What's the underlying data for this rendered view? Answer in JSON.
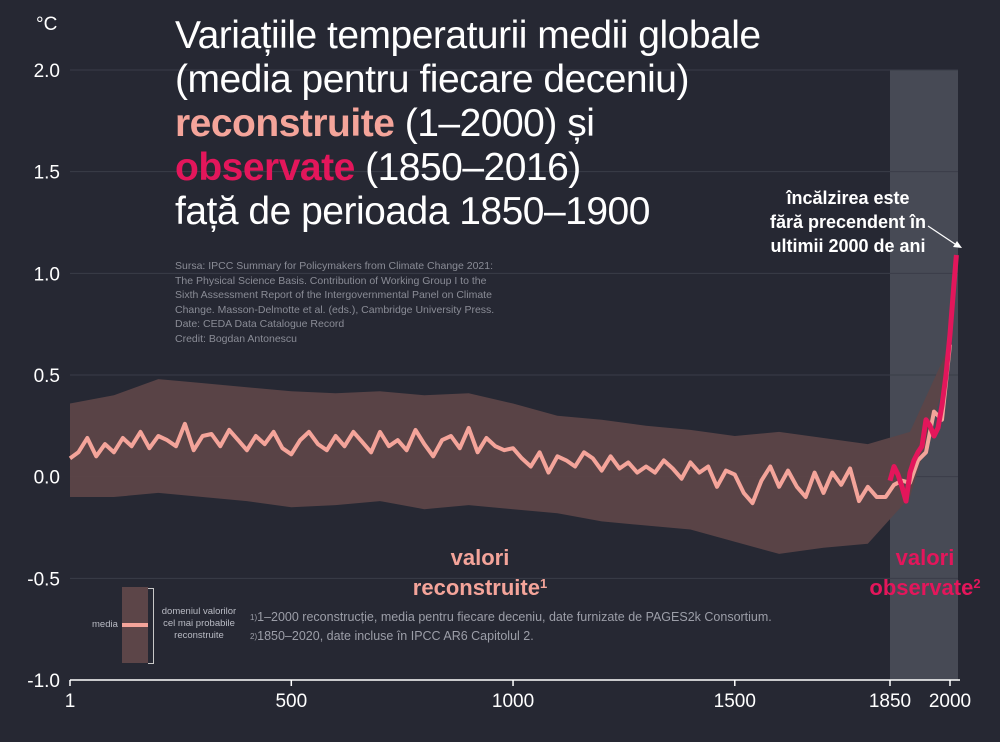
{
  "title": {
    "line1": "Variațiile temperaturii medii globale",
    "line2": "(media pentru fiecare deceniu)",
    "reconstructed_word": "reconstruite",
    "reconstructed_range": " (1–2000) și",
    "observed_word": "observate",
    "observed_range": " (1850–2016)",
    "line5": "față de perioada 1850–1900"
  },
  "source_lines": [
    "Sursa: IPCC Summary for Policymakers from Climate Change 2021:",
    "The Physical Science Basis. Contribution of Working Group I to the",
    "Sixth Assessment Report of the Intergovernmental Panel on Climate",
    "Change. Masson-Delmotte et al. (eds.), Cambridge University Press.",
    "Date: CEDA Data Catalogue Record",
    "Credit: Bogdan Antonescu"
  ],
  "annotation": {
    "line1": "încălzirea este",
    "line2": "fără precendent în",
    "line3": "ultimii 2000 de ani"
  },
  "labels": {
    "reconstructed_l1": "valori",
    "reconstructed_l2": "reconstruite",
    "reconstructed_sup": "1",
    "observed_l1": "valori",
    "observed_l2": "observate",
    "observed_sup": "2"
  },
  "footnotes": {
    "fn1_sup": "1)",
    "fn1_text": "1–2000 reconstrucție, media pentru fiecare deceniu, date furnizate de PAGES2k Consortium.",
    "fn2_sup": "2)",
    "fn2_text": "1850–2020, date incluse în IPCC AR6 Capitolul 2."
  },
  "legend": {
    "median_label": "media",
    "range_l1": "domeniul valorilor",
    "range_l2": "cel mai probabile",
    "range_l3": "reconstruite"
  },
  "unit_label": "°C",
  "colors": {
    "background": "#262833",
    "reconstructed": "#f4a49a",
    "band": "#5c4548",
    "observed": "#e3165b",
    "highlight_zone": "#474a55",
    "grid": "#3a3d48"
  },
  "chart_data": {
    "type": "line",
    "title": "Variațiile temperaturii medii globale (media pentru fiecare deceniu) reconstruite (1–2000) și observate (1850–2016) față de perioada 1850–1900",
    "xlabel": "",
    "ylabel": "°C",
    "ylim": [
      -1.0,
      2.0
    ],
    "xlim": [
      1,
      2020
    ],
    "x_ticks": [
      1,
      500,
      1000,
      1500,
      1850,
      2000
    ],
    "y_ticks": [
      -1.0,
      -0.5,
      0.0,
      0.5,
      1.0,
      1.5,
      2.0
    ],
    "y_tick_labels": [
      "-1.0",
      "-0.5",
      "0.0",
      "0.5",
      "1.0",
      "1.5",
      "2.0"
    ],
    "x_tick_labels": [
      "1",
      "500",
      "1000",
      "1500",
      "1850",
      "2000"
    ],
    "highlight_span": [
      1850,
      2020
    ],
    "series": [
      {
        "name": "reconstructed median",
        "x": [
          1,
          20,
          40,
          60,
          80,
          100,
          120,
          140,
          160,
          180,
          200,
          220,
          240,
          260,
          280,
          300,
          320,
          340,
          360,
          380,
          400,
          420,
          440,
          460,
          480,
          500,
          520,
          540,
          560,
          580,
          600,
          620,
          640,
          660,
          680,
          700,
          720,
          740,
          760,
          780,
          800,
          820,
          840,
          860,
          880,
          900,
          920,
          940,
          960,
          980,
          1000,
          1020,
          1040,
          1060,
          1080,
          1100,
          1120,
          1140,
          1160,
          1180,
          1200,
          1220,
          1240,
          1260,
          1280,
          1300,
          1320,
          1340,
          1360,
          1380,
          1400,
          1420,
          1440,
          1460,
          1480,
          1500,
          1520,
          1540,
          1560,
          1580,
          1600,
          1620,
          1640,
          1660,
          1680,
          1700,
          1720,
          1740,
          1760,
          1780,
          1800,
          1820,
          1840,
          1860,
          1880,
          1900,
          1920,
          1940,
          1960,
          1980,
          2000
        ],
        "values": [
          0.09,
          0.12,
          0.19,
          0.1,
          0.16,
          0.12,
          0.19,
          0.15,
          0.22,
          0.14,
          0.2,
          0.18,
          0.15,
          0.26,
          0.13,
          0.2,
          0.21,
          0.15,
          0.23,
          0.18,
          0.13,
          0.2,
          0.16,
          0.22,
          0.14,
          0.11,
          0.18,
          0.22,
          0.16,
          0.13,
          0.2,
          0.15,
          0.22,
          0.17,
          0.12,
          0.22,
          0.15,
          0.18,
          0.13,
          0.23,
          0.16,
          0.1,
          0.18,
          0.2,
          0.14,
          0.24,
          0.12,
          0.19,
          0.15,
          0.13,
          0.14,
          0.09,
          0.05,
          0.12,
          0.02,
          0.1,
          0.08,
          0.05,
          0.12,
          0.09,
          0.03,
          0.1,
          0.04,
          0.07,
          0.02,
          0.05,
          0.02,
          0.08,
          0.04,
          -0.01,
          0.07,
          0.02,
          0.05,
          -0.05,
          0.03,
          0.01,
          -0.08,
          -0.13,
          -0.02,
          0.05,
          -0.05,
          0.03,
          -0.05,
          -0.1,
          0.02,
          -0.08,
          0.02,
          -0.04,
          0.04,
          -0.12,
          -0.05,
          -0.1,
          -0.1,
          -0.04,
          -0.02,
          -0.03,
          0.08,
          0.12,
          0.32,
          0.28,
          0.65
        ]
      },
      {
        "name": "reconstructed likely range upper",
        "x": [
          1,
          100,
          200,
          300,
          400,
          500,
          600,
          700,
          800,
          900,
          1000,
          1100,
          1200,
          1300,
          1400,
          1500,
          1600,
          1700,
          1800,
          1900,
          2000
        ],
        "values": [
          0.36,
          0.4,
          0.48,
          0.46,
          0.44,
          0.42,
          0.41,
          0.42,
          0.4,
          0.41,
          0.36,
          0.3,
          0.28,
          0.25,
          0.23,
          0.2,
          0.22,
          0.19,
          0.16,
          0.22,
          0.65
        ]
      },
      {
        "name": "reconstructed likely range lower",
        "x": [
          1,
          100,
          200,
          300,
          400,
          500,
          600,
          700,
          800,
          900,
          1000,
          1100,
          1200,
          1300,
          1400,
          1500,
          1600,
          1700,
          1800,
          1900,
          2000
        ],
        "values": [
          -0.1,
          -0.1,
          -0.08,
          -0.1,
          -0.12,
          -0.15,
          -0.14,
          -0.12,
          -0.16,
          -0.14,
          -0.16,
          -0.18,
          -0.22,
          -0.24,
          -0.26,
          -0.32,
          -0.38,
          -0.35,
          -0.33,
          -0.1,
          0.55
        ]
      },
      {
        "name": "observed",
        "x": [
          1850,
          1860,
          1870,
          1880,
          1890,
          1900,
          1910,
          1920,
          1930,
          1940,
          1950,
          1960,
          1970,
          1980,
          1990,
          2000,
          2010,
          2016
        ],
        "values": [
          -0.02,
          0.05,
          0.01,
          -0.05,
          -0.12,
          0.02,
          0.08,
          0.12,
          0.15,
          0.28,
          0.25,
          0.2,
          0.24,
          0.35,
          0.5,
          0.7,
          0.95,
          1.09
        ]
      }
    ]
  }
}
